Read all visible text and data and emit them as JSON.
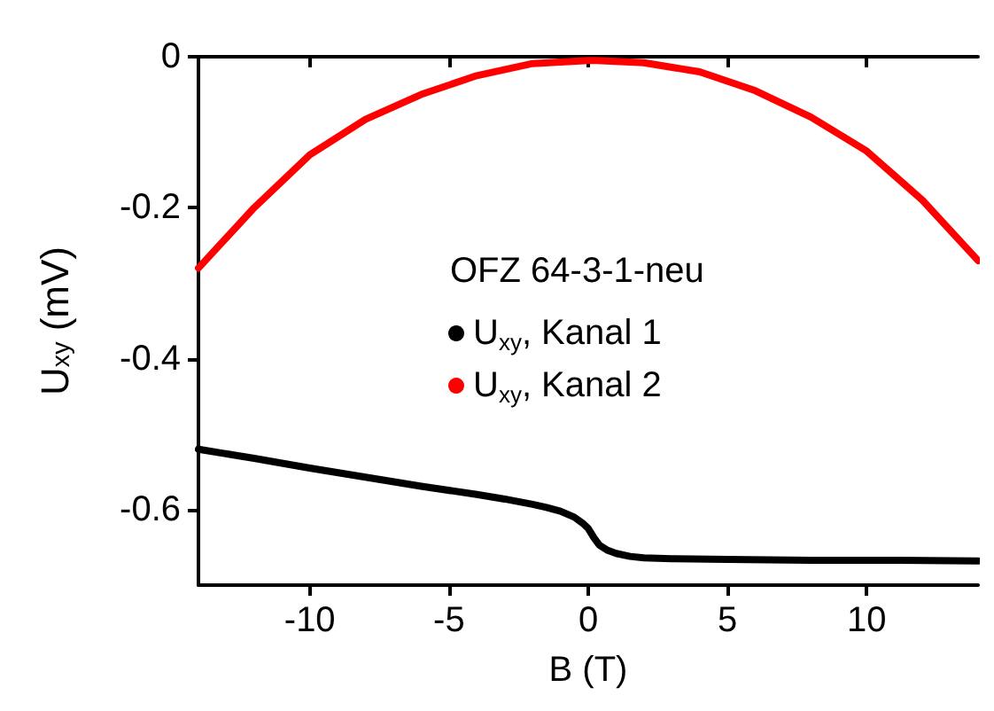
{
  "chart_data": {
    "type": "line",
    "xlabel": "B (T)",
    "ylabel": "U$_{xy}$ (mV)",
    "legend_title": "OFZ 64-3-1-neu",
    "legend": "center",
    "marker": "none",
    "line_style": "solid",
    "grid": false,
    "xlim": [
      -14,
      14
    ],
    "xticks": [
      -10,
      -5,
      0,
      5,
      10
    ],
    "ylim": [
      -0.7,
      0
    ],
    "yticks": [
      0,
      -0.2,
      -0.4,
      -0.6
    ],
    "series": [
      {
        "name": "U$_{xy}$, Kanal 1",
        "color": "#000000",
        "x": [
          -14,
          -12,
          -10,
          -8,
          -6,
          -4,
          -3,
          -2,
          -1.5,
          -1,
          -0.5,
          -0.2,
          0,
          0.2,
          0.4,
          0.7,
          1,
          1.5,
          2,
          3,
          5,
          8,
          11,
          14
        ],
        "values": [
          -0.52,
          -0.532,
          -0.545,
          -0.557,
          -0.569,
          -0.58,
          -0.586,
          -0.593,
          -0.597,
          -0.602,
          -0.61,
          -0.618,
          -0.625,
          -0.637,
          -0.647,
          -0.654,
          -0.658,
          -0.662,
          -0.664,
          -0.665,
          -0.666,
          -0.667,
          -0.667,
          -0.668
        ]
      },
      {
        "name": "U$_{xy}$, Kanal 2",
        "color": "#ff0000",
        "x": [
          -14,
          -12,
          -10,
          -8,
          -6,
          -4,
          -2,
          0,
          0.3,
          2,
          4,
          6,
          8,
          10,
          12,
          14
        ],
        "values": [
          -0.28,
          -0.2,
          -0.13,
          -0.083,
          -0.05,
          -0.025,
          -0.009,
          -0.005,
          -0.005,
          -0.008,
          -0.02,
          -0.045,
          -0.08,
          -0.125,
          -0.19,
          -0.27
        ]
      }
    ]
  }
}
